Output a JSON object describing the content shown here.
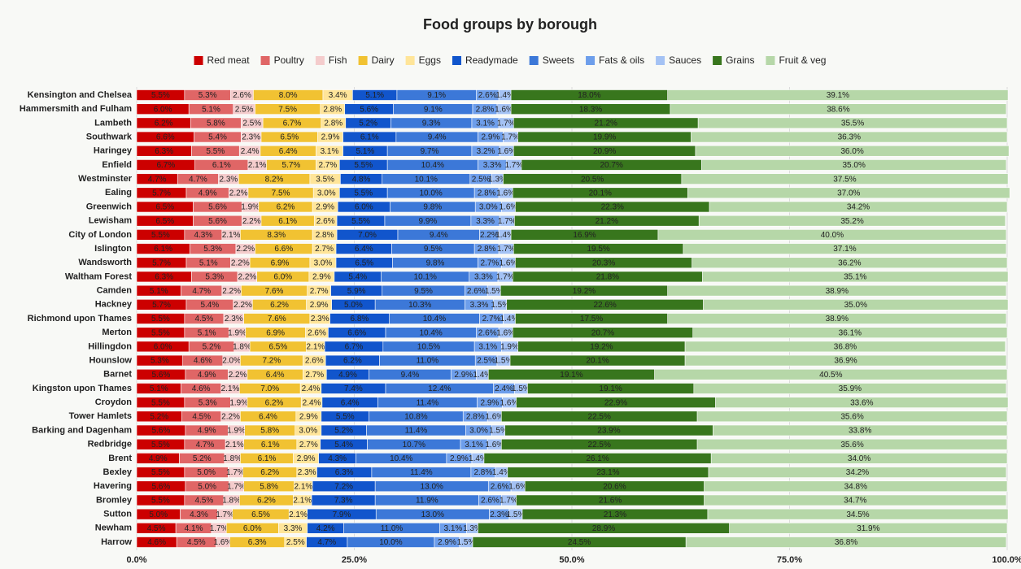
{
  "chart_data": {
    "type": "stacked_barh",
    "title": "Food groups by borough",
    "categories": [
      "Kensington and Chelsea",
      "Hammersmith and Fulham",
      "Lambeth",
      "Southwark",
      "Haringey",
      "Enfield",
      "Westminster",
      "Ealing",
      "Greenwich",
      "Lewisham",
      "City of London",
      "Islington",
      "Wandsworth",
      "Waltham Forest",
      "Camden",
      "Hackney",
      "Richmond upon Thames",
      "Merton",
      "Hillingdon",
      "Hounslow",
      "Barnet",
      "Kingston upon Thames",
      "Croydon",
      "Tower Hamlets",
      "Barking and Dagenham",
      "Redbridge",
      "Brent",
      "Bexley",
      "Havering",
      "Bromley",
      "Sutton",
      "Newham",
      "Harrow"
    ],
    "xlim": [
      0,
      100
    ],
    "xticks": [
      {
        "value": 0,
        "label": "0.0%"
      },
      {
        "value": 25,
        "label": "25.0%"
      },
      {
        "value": 50,
        "label": "50.0%"
      },
      {
        "value": 75,
        "label": "75.0%"
      },
      {
        "value": 100,
        "label": "100.0%"
      }
    ],
    "grid": true,
    "legend": "top",
    "series": [
      {
        "name": "Red meat",
        "color": "#cc0000",
        "values": [
          5.5,
          6.0,
          6.2,
          6.6,
          6.3,
          6.7,
          4.7,
          5.7,
          6.5,
          6.5,
          5.5,
          6.1,
          5.7,
          6.3,
          5.1,
          5.7,
          5.5,
          5.5,
          6.0,
          5.3,
          5.6,
          5.1,
          5.5,
          5.2,
          5.6,
          5.5,
          4.9,
          5.5,
          5.6,
          5.5,
          5.0,
          4.5,
          4.6
        ],
        "value_labels": [
          "5.5%",
          "6.0%",
          "6.2%",
          "6.6%",
          "6.3%",
          "6.7%",
          "4.7%",
          "5.7%",
          "6.5%",
          "6.5%",
          "5.5%",
          "6.1%",
          "5.7%",
          "6.3%",
          "5.1%",
          "5.7%",
          "5.5%",
          "5.5%",
          "6.0%",
          "5.3%",
          "5.6%",
          "5.1%",
          "5.5%",
          "5.2%",
          "5.6%",
          "5.5%",
          "4.9%",
          "5.5%",
          "5.6%",
          "5.5%",
          "5.0%",
          "4.5%",
          "4.6%"
        ]
      },
      {
        "name": "Poultry",
        "color": "#e06666",
        "values": [
          5.3,
          5.1,
          5.8,
          5.4,
          5.5,
          6.1,
          4.7,
          4.9,
          5.6,
          5.6,
          4.3,
          5.3,
          5.1,
          5.3,
          4.7,
          5.4,
          4.5,
          5.1,
          5.2,
          4.6,
          4.9,
          4.6,
          5.3,
          4.5,
          4.9,
          4.7,
          5.2,
          5.0,
          5.0,
          4.5,
          4.3,
          4.1,
          4.5
        ],
        "value_labels": [
          "5.3%",
          "5.1%",
          "5.8%",
          "5.4%",
          "5.5%",
          "6.1%",
          "4.7%",
          "4.9%",
          "5.6%",
          "5.6%",
          "4.3%",
          "5.3%",
          "5.1%",
          "5.3%",
          "4.7%",
          "5.4%",
          "4.5%",
          "5.1%",
          "5.2%",
          "4.6%",
          "4.9%",
          "4.6%",
          "5.3%",
          "4.5%",
          "4.9%",
          "4.7%",
          "5.2%",
          "5.0%",
          "5.0%",
          "4.5%",
          "4.3%",
          "4.1%",
          "4.5%"
        ]
      },
      {
        "name": "Fish",
        "color": "#f4cccc",
        "values": [
          2.6,
          2.5,
          2.5,
          2.3,
          2.4,
          2.1,
          2.3,
          2.2,
          1.9,
          2.2,
          2.1,
          2.2,
          2.2,
          2.2,
          2.2,
          2.2,
          2.3,
          1.9,
          1.8,
          2.0,
          2.2,
          2.1,
          1.9,
          2.2,
          1.9,
          2.1,
          1.8,
          1.7,
          1.7,
          1.8,
          1.7,
          1.7,
          1.6
        ],
        "value_labels": [
          "2.6%",
          "2.5%",
          "2.5%",
          "2.3%",
          "2.4%",
          "2.1%",
          "2.3%",
          "2.2%",
          "1.9%",
          "2.2%",
          "2.1%",
          "2.2%",
          "2.2%",
          "2.2%",
          "2.2%",
          "2.2%",
          "2.3%",
          "1.9%",
          "1.8%",
          "2.0%",
          "2.2%",
          "2.1%",
          "1.9%",
          "2.2%",
          "1.9%",
          "2.1%",
          "1.8%",
          "1.7%",
          "1.7%",
          "1.8%",
          "1.7%",
          "1.7%",
          "1.6%"
        ]
      },
      {
        "name": "Dairy",
        "color": "#f1c232",
        "values": [
          8.0,
          7.5,
          6.7,
          6.5,
          6.4,
          5.7,
          8.2,
          7.5,
          6.2,
          6.1,
          8.3,
          6.6,
          6.9,
          6.0,
          7.6,
          6.2,
          7.6,
          6.9,
          6.5,
          7.2,
          6.4,
          7.0,
          6.2,
          6.4,
          5.8,
          6.1,
          6.1,
          6.2,
          5.8,
          6.2,
          6.5,
          6.0,
          6.3
        ],
        "value_labels": [
          "8.0%",
          "7.5%",
          "6.7%",
          "6.5%",
          "6.4%",
          "5.7%",
          "8.2%",
          "7.5%",
          "6.2%",
          "6.1%",
          "8.3%",
          "6.6%",
          "6.9%",
          "6.0%",
          "7.6%",
          "6.2%",
          "7.6%",
          "6.9%",
          "6.5%",
          "7.2%",
          "6.4%",
          "7.0%",
          "6.2%",
          "6.4%",
          "5.8%",
          "6.1%",
          "6.1%",
          "6.2%",
          "5.8%",
          "6.2%",
          "6.5%",
          "6.0%",
          "6.3%"
        ]
      },
      {
        "name": "Eggs",
        "color": "#ffe599",
        "values": [
          3.4,
          2.8,
          2.8,
          2.9,
          3.1,
          2.7,
          3.5,
          3.0,
          2.9,
          2.6,
          2.8,
          2.7,
          3.0,
          2.9,
          2.7,
          2.9,
          2.3,
          2.6,
          2.1,
          2.6,
          2.7,
          2.4,
          2.4,
          2.9,
          3.0,
          2.7,
          2.9,
          2.3,
          2.1,
          2.1,
          2.1,
          3.3,
          2.5
        ],
        "value_labels": [
          "3.4%",
          "2.8%",
          "2.8%",
          "2.9%",
          "3.1%",
          "2.7%",
          "3.5%",
          "3.0%",
          "2.9%",
          "2.6%",
          "2.8%",
          "2.7%",
          "3.0%",
          "2.9%",
          "2.7%",
          "2.9%",
          "2.3%",
          "2.6%",
          "2.1%",
          "2.6%",
          "2.7%",
          "2.4%",
          "2.4%",
          "2.9%",
          "3.0%",
          "2.7%",
          "2.9%",
          "2.3%",
          "2.1%",
          "2.1%",
          "2.1%",
          "3.3%",
          "2.5%"
        ]
      },
      {
        "name": "Readymade",
        "color": "#1155cc",
        "values": [
          5.1,
          5.6,
          5.2,
          6.1,
          5.1,
          5.5,
          4.8,
          5.5,
          6.0,
          5.5,
          7.0,
          6.4,
          6.5,
          5.4,
          5.9,
          5.0,
          6.8,
          6.6,
          6.7,
          6.2,
          4.9,
          7.4,
          6.4,
          5.5,
          5.2,
          5.4,
          4.3,
          6.3,
          7.2,
          7.3,
          7.9,
          4.2,
          4.7
        ],
        "value_labels": [
          "5.1%",
          "5.6%",
          "5.2%",
          "6.1%",
          "5.1%",
          "5.5%",
          "4.8%",
          "5.5%",
          "6.0%",
          "5.5%",
          "7.0%",
          "6.4%",
          "6.5%",
          "5.4%",
          "5.9%",
          "5.0%",
          "6.8%",
          "6.6%",
          "6.7%",
          "6.2%",
          "4.9%",
          "7.4%",
          "6.4%",
          "5.5%",
          "5.2%",
          "5.4%",
          "4.3%",
          "6.3%",
          "7.2%",
          "7.3%",
          "7.9%",
          "4.2%",
          "4.7%"
        ]
      },
      {
        "name": "Sweets",
        "color": "#3c78d8",
        "values": [
          9.1,
          9.1,
          9.3,
          9.4,
          9.7,
          10.4,
          10.1,
          10.0,
          9.8,
          9.9,
          9.4,
          9.5,
          9.8,
          10.1,
          9.5,
          10.3,
          10.4,
          10.4,
          10.5,
          11.0,
          9.4,
          12.4,
          11.4,
          10.8,
          11.4,
          10.7,
          10.4,
          11.4,
          13.0,
          11.9,
          13.0,
          11.0,
          10.0
        ],
        "value_labels": [
          "9.1%",
          "9.1%",
          "9.3%",
          "9.4%",
          "9.7%",
          "10.4%",
          "10.1%",
          "10.0%",
          "9.8%",
          "9.9%",
          "9.4%",
          "9.5%",
          "9.8%",
          "10.1%",
          "9.5%",
          "10.3%",
          "10.4%",
          "10.4%",
          "10.5%",
          "11.0%",
          "9.4%",
          "12.4%",
          "11.4%",
          "10.8%",
          "11.4%",
          "10.7%",
          "10.4%",
          "11.4%",
          "13.0%",
          "11.9%",
          "13.0%",
          "11.0%",
          "10.0%"
        ]
      },
      {
        "name": "Fats & oils",
        "color": "#6d9eeb",
        "values": [
          2.6,
          2.8,
          3.1,
          2.9,
          3.2,
          3.3,
          2.5,
          2.8,
          3.0,
          3.3,
          2.2,
          2.8,
          2.7,
          3.3,
          2.6,
          3.3,
          2.7,
          2.6,
          3.1,
          2.5,
          2.9,
          2.4,
          2.9,
          2.8,
          3.0,
          3.1,
          2.9,
          2.8,
          2.6,
          2.6,
          2.3,
          3.1,
          2.9
        ],
        "value_labels": [
          "2.6%",
          "2.8%",
          "3.1%",
          "2.9%",
          "3.2%",
          "3.3%",
          "2.5%",
          "2.8%",
          "3.0%",
          "3.3%",
          "2.2%",
          "2.8%",
          "2.7%",
          "3.3%",
          "2.6%",
          "3.3%",
          "2.7%",
          "2.6%",
          "3.1%",
          "2.5%",
          "2.9%",
          "2.4%",
          "2.9%",
          "2.8%",
          "3.0%",
          "3.1%",
          "2.9%",
          "2.8%",
          "2.6%",
          "2.6%",
          "2.3%",
          "3.1%",
          "2.9%"
        ]
      },
      {
        "name": "Sauces",
        "color": "#a4c2f4",
        "values": [
          1.4,
          1.6,
          1.7,
          1.7,
          1.6,
          1.7,
          1.3,
          1.6,
          1.6,
          1.7,
          1.4,
          1.7,
          1.6,
          1.7,
          1.5,
          1.5,
          1.4,
          1.6,
          1.9,
          1.5,
          1.4,
          1.5,
          1.6,
          1.6,
          1.5,
          1.6,
          1.4,
          1.4,
          1.6,
          1.7,
          1.5,
          1.3,
          1.5
        ],
        "value_labels": [
          "1.4%",
          "1.6%",
          "1.7%",
          "1.7%",
          "1.6%",
          "1.7%",
          "1.3%",
          "1.6%",
          "1.6%",
          "1.7%",
          "1.4%",
          "1.7%",
          "1.6%",
          "1.7%",
          "1.5%",
          "1.5%",
          "1.4%",
          "1.6%",
          "1.9%",
          "1.5%",
          "1.4%",
          "1.5%",
          "1.6%",
          "1.6%",
          "1.5%",
          "1.6%",
          "1.4%",
          "1.4%",
          "1.6%",
          "1.7%",
          "1.5%",
          "1.3%",
          "1.5%"
        ]
      },
      {
        "name": "Grains",
        "color": "#38761d",
        "values": [
          18.0,
          18.3,
          21.2,
          19.9,
          20.9,
          20.7,
          20.5,
          20.1,
          22.3,
          21.2,
          16.9,
          19.5,
          20.3,
          21.8,
          19.2,
          22.6,
          17.5,
          20.7,
          19.2,
          20.1,
          19.1,
          19.1,
          22.9,
          22.5,
          23.9,
          22.5,
          26.1,
          23.1,
          20.6,
          21.6,
          21.3,
          28.9,
          24.5
        ],
        "value_labels": [
          "18.0%",
          "18.3%",
          "21.2%",
          "19.9%",
          "20.9%",
          "20.7%",
          "20.5%",
          "20.1%",
          "22.3%",
          "21.2%",
          "16.9%",
          "19.5%",
          "20.3%",
          "21.8%",
          "19.2%",
          "22.6%",
          "17.5%",
          "20.7%",
          "19.2%",
          "20.1%",
          "19.1%",
          "19.1%",
          "22.9%",
          "22.5%",
          "23.9%",
          "22.5%",
          "26.1%",
          "23.1%",
          "20.6%",
          "21.6%",
          "21.3%",
          "28.9%",
          "24.5%"
        ]
      },
      {
        "name": "Fruit & veg",
        "color": "#b6d7a8",
        "values": [
          39.1,
          38.6,
          35.5,
          36.3,
          36.0,
          35.0,
          37.5,
          37.0,
          34.2,
          35.2,
          40.0,
          37.1,
          36.2,
          35.1,
          38.9,
          35.0,
          38.9,
          36.1,
          36.8,
          36.9,
          40.5,
          35.9,
          33.6,
          35.6,
          33.8,
          35.6,
          34.0,
          34.2,
          34.8,
          34.7,
          34.5,
          31.9,
          36.8
        ],
        "value_labels": [
          "39.1%",
          "38.6%",
          "35.5%",
          "36.3%",
          "36.0%",
          "35.0%",
          "37.5%",
          "37.0%",
          "34.2%",
          "35.2%",
          "40.0%",
          "37.1%",
          "36.2%",
          "35.1%",
          "38.9%",
          "35.0%",
          "38.9%",
          "36.1%",
          "36.8%",
          "36.9%",
          "40.5%",
          "35.9%",
          "33.6%",
          "35.6%",
          "33.8%",
          "35.6%",
          "34.0%",
          "34.2%",
          "34.8%",
          "34.7%",
          "34.5%",
          "31.9%",
          "36.8%"
        ]
      }
    ]
  }
}
